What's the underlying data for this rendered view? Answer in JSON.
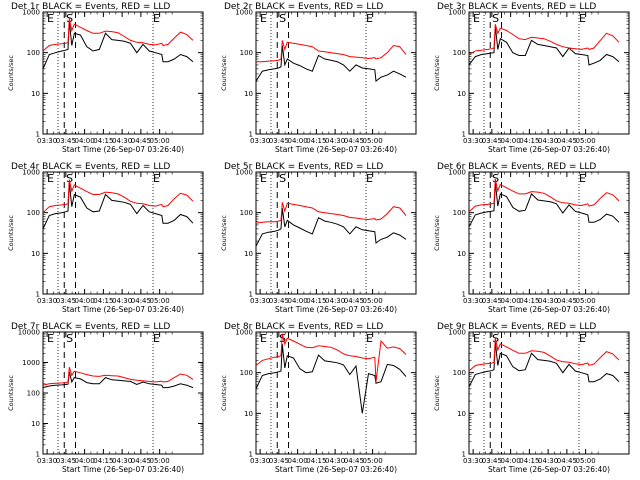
{
  "colors": {
    "events": "#000000",
    "lld": "#ff0000",
    "background": "#ffffff"
  },
  "chart_data": [
    {
      "type": "line",
      "title": "Det 1r BLACK = Events, RED = LLD",
      "xlabel": "Start Time (26-Sep-07 03:26:40)",
      "ylabel": "Counts/sec",
      "yscale": "log",
      "ylim": [
        1,
        1000
      ],
      "yticks": [
        "1",
        "10",
        "100",
        "1000"
      ],
      "xticks": [
        "03:30",
        "03:45",
        "04:00",
        "04:15",
        "04:30",
        "04:45",
        "05:00"
      ],
      "markers": [
        "E",
        "S",
        "E"
      ],
      "x_minutes": [
        0,
        5,
        10,
        15,
        18,
        20,
        21,
        23,
        25,
        30,
        35,
        40,
        45,
        50,
        55,
        60,
        65,
        70,
        75,
        80,
        85,
        90,
        95,
        96,
        100,
        105,
        110,
        115,
        120
      ],
      "series": [
        {
          "name": "Events",
          "values": [
            40,
            90,
            100,
            110,
            115,
            120,
            600,
            150,
            300,
            270,
            140,
            110,
            120,
            300,
            210,
            200,
            190,
            170,
            100,
            160,
            110,
            100,
            90,
            60,
            60,
            70,
            90,
            80,
            60
          ]
        },
        {
          "name": "LLD",
          "values": [
            110,
            150,
            160,
            165,
            170,
            175,
            700,
            350,
            500,
            420,
            350,
            300,
            300,
            340,
            330,
            310,
            250,
            200,
            180,
            175,
            160,
            155,
            170,
            150,
            160,
            230,
            320,
            280,
            200
          ]
        }
      ]
    },
    {
      "type": "line",
      "title": "Det 2r BLACK = Events, RED = LLD",
      "xlabel": "Start Time (26-Sep-07 03:26:40)",
      "ylabel": "Counts/sec",
      "yscale": "log",
      "ylim": [
        1,
        1000
      ],
      "yticks": [
        "1",
        "10",
        "100",
        "1000"
      ],
      "xticks": [
        "03:30",
        "03:45",
        "04:00",
        "04:15",
        "04:30",
        "04:45",
        "05:00"
      ],
      "markers": [
        "E",
        "S",
        "E"
      ],
      "x_minutes": [
        0,
        5,
        10,
        15,
        18,
        20,
        21,
        23,
        25,
        30,
        35,
        40,
        45,
        50,
        55,
        60,
        65,
        70,
        75,
        80,
        85,
        90,
        95,
        96,
        100,
        105,
        110,
        115,
        120
      ],
      "series": [
        {
          "name": "Events",
          "values": [
            20,
            35,
            38,
            40,
            42,
            45,
            150,
            50,
            70,
            55,
            48,
            40,
            35,
            85,
            70,
            65,
            60,
            50,
            35,
            50,
            42,
            40,
            38,
            20,
            25,
            28,
            35,
            30,
            25
          ]
        },
        {
          "name": "LLD",
          "values": [
            60,
            60,
            62,
            63,
            65,
            70,
            200,
            120,
            180,
            170,
            160,
            150,
            140,
            110,
            105,
            100,
            95,
            90,
            80,
            78,
            75,
            72,
            75,
            70,
            75,
            100,
            150,
            140,
            90
          ]
        }
      ]
    },
    {
      "type": "line",
      "title": "Det 3r BLACK = Events, RED = LLD",
      "xlabel": "Start Time (26-Sep-07 03:26:40)",
      "ylabel": "Counts/sec",
      "yscale": "log",
      "ylim": [
        1,
        1000
      ],
      "yticks": [
        "1",
        "10",
        "100",
        "1000"
      ],
      "xticks": [
        "03:30",
        "03:45",
        "04:00",
        "04:15",
        "04:30",
        "04:45",
        "05:00"
      ],
      "markers": [
        "E",
        "S",
        "E"
      ],
      "x_minutes": [
        0,
        5,
        10,
        15,
        18,
        20,
        21,
        23,
        25,
        30,
        35,
        40,
        45,
        50,
        55,
        60,
        65,
        70,
        75,
        80,
        85,
        90,
        95,
        96,
        100,
        105,
        110,
        115,
        120
      ],
      "series": [
        {
          "name": "Events",
          "values": [
            50,
            80,
            90,
            95,
            98,
            100,
            450,
            120,
            220,
            180,
            100,
            85,
            85,
            200,
            160,
            150,
            140,
            130,
            80,
            130,
            95,
            90,
            85,
            50,
            55,
            65,
            90,
            80,
            60
          ]
        },
        {
          "name": "LLD",
          "values": [
            90,
            110,
            115,
            120,
            125,
            130,
            500,
            300,
            400,
            350,
            280,
            220,
            210,
            240,
            230,
            220,
            190,
            160,
            140,
            130,
            125,
            120,
            130,
            120,
            130,
            200,
            300,
            260,
            180
          ]
        }
      ]
    },
    {
      "type": "line",
      "title": "Det 4r BLACK = Events, RED = LLD",
      "xlabel": "Start Time (26-Sep-07 03:26:40)",
      "ylabel": "Counts/sec",
      "yscale": "log",
      "ylim": [
        1,
        1000
      ],
      "yticks": [
        "1",
        "10",
        "100",
        "1000"
      ],
      "xticks": [
        "03:30",
        "03:45",
        "04:00",
        "04:15",
        "04:30",
        "04:45",
        "05:00"
      ],
      "markers": [
        "E",
        "S",
        "E"
      ],
      "x_minutes": [
        0,
        5,
        10,
        15,
        18,
        20,
        21,
        23,
        25,
        30,
        35,
        40,
        45,
        50,
        55,
        60,
        65,
        70,
        75,
        80,
        85,
        90,
        95,
        96,
        100,
        105,
        110,
        115,
        120
      ],
      "series": [
        {
          "name": "Events",
          "values": [
            40,
            85,
            95,
            100,
            105,
            110,
            550,
            140,
            280,
            240,
            130,
            105,
            110,
            280,
            200,
            190,
            180,
            160,
            95,
            150,
            105,
            95,
            85,
            55,
            55,
            65,
            90,
            80,
            55
          ]
        },
        {
          "name": "LLD",
          "values": [
            100,
            140,
            150,
            155,
            160,
            165,
            650,
            340,
            480,
            400,
            330,
            280,
            280,
            320,
            310,
            290,
            240,
            190,
            170,
            165,
            150,
            145,
            160,
            140,
            150,
            220,
            300,
            270,
            190
          ]
        }
      ]
    },
    {
      "type": "line",
      "title": "Det 5r BLACK = Events, RED = LLD",
      "xlabel": "Start Time (26-Sep-07 03:26:40)",
      "ylabel": "Counts/sec",
      "yscale": "log",
      "ylim": [
        1,
        1000
      ],
      "yticks": [
        "1",
        "10",
        "100",
        "1000"
      ],
      "xticks": [
        "03:30",
        "03:45",
        "04:00",
        "04:15",
        "04:30",
        "04:45",
        "05:00"
      ],
      "markers": [
        "E",
        "S",
        "E"
      ],
      "x_minutes": [
        0,
        5,
        10,
        15,
        18,
        20,
        21,
        23,
        25,
        30,
        35,
        40,
        45,
        50,
        55,
        60,
        65,
        70,
        75,
        80,
        85,
        90,
        95,
        96,
        100,
        105,
        110,
        115,
        120
      ],
      "series": [
        {
          "name": "Events",
          "values": [
            15,
            30,
            33,
            35,
            37,
            40,
            130,
            45,
            65,
            50,
            42,
            35,
            30,
            75,
            62,
            58,
            52,
            45,
            30,
            45,
            38,
            36,
            34,
            18,
            22,
            25,
            32,
            28,
            22
          ]
        },
        {
          "name": "LLD",
          "values": [
            55,
            58,
            60,
            60,
            62,
            65,
            180,
            110,
            170,
            160,
            150,
            140,
            130,
            105,
            100,
            95,
            90,
            85,
            76,
            74,
            70,
            68,
            72,
            66,
            70,
            95,
            140,
            130,
            85
          ]
        }
      ]
    },
    {
      "type": "line",
      "title": "Det 6r BLACK = Events, RED = LLD",
      "xlabel": "Start Time (26-Sep-07 03:26:40)",
      "ylabel": "Counts/sec",
      "yscale": "log",
      "ylim": [
        1,
        1000
      ],
      "yticks": [
        "1",
        "10",
        "100",
        "1000"
      ],
      "xticks": [
        "03:30",
        "03:45",
        "04:00",
        "04:15",
        "04:30",
        "04:45",
        "05:00"
      ],
      "markers": [
        "E",
        "S",
        "E"
      ],
      "x_minutes": [
        0,
        5,
        10,
        15,
        18,
        20,
        21,
        23,
        25,
        30,
        35,
        40,
        45,
        50,
        55,
        60,
        65,
        70,
        75,
        80,
        85,
        90,
        95,
        96,
        100,
        105,
        110,
        115,
        120
      ],
      "series": [
        {
          "name": "Events",
          "values": [
            45,
            88,
            98,
            105,
            108,
            112,
            560,
            145,
            290,
            250,
            135,
            108,
            115,
            290,
            205,
            195,
            185,
            165,
            98,
            155,
            108,
            98,
            88,
            58,
            58,
            68,
            92,
            82,
            58
          ]
        },
        {
          "name": "LLD",
          "values": [
            105,
            145,
            155,
            160,
            165,
            170,
            680,
            345,
            490,
            410,
            340,
            290,
            290,
            330,
            320,
            300,
            245,
            195,
            175,
            170,
            155,
            150,
            165,
            145,
            155,
            225,
            310,
            275,
            195
          ]
        }
      ]
    },
    {
      "type": "line",
      "title": "Det 7r BLACK = Events, RED = LLD",
      "xlabel": "Start Time (26-Sep-07 03:26:40)",
      "ylabel": "Counts/sec",
      "yscale": "log",
      "ylim": [
        1,
        10000
      ],
      "yticks": [
        "1",
        "10",
        "100",
        "1000",
        "10000"
      ],
      "xticks": [
        "03:30",
        "03:45",
        "04:00",
        "04:15",
        "04:30",
        "04:45",
        "05:00"
      ],
      "markers": [
        "E",
        "S",
        "E"
      ],
      "x_minutes": [
        0,
        5,
        10,
        15,
        18,
        20,
        21,
        23,
        25,
        30,
        35,
        40,
        45,
        50,
        55,
        60,
        65,
        70,
        75,
        80,
        85,
        90,
        95,
        96,
        100,
        105,
        110,
        115,
        120
      ],
      "series": [
        {
          "name": "Events",
          "values": [
            150,
            170,
            180,
            185,
            190,
            195,
            500,
            230,
            320,
            290,
            220,
            200,
            200,
            320,
            270,
            260,
            250,
            240,
            190,
            230,
            200,
            190,
            180,
            150,
            150,
            170,
            200,
            180,
            150
          ]
        },
        {
          "name": "LLD",
          "values": [
            180,
            200,
            210,
            215,
            220,
            230,
            700,
            380,
            520,
            460,
            400,
            360,
            350,
            380,
            370,
            360,
            320,
            280,
            260,
            250,
            240,
            230,
            245,
            230,
            240,
            320,
            420,
            380,
            280
          ]
        }
      ]
    },
    {
      "type": "line",
      "title": "Det 8r BLACK = Events, RED = LLD",
      "xlabel": "Start Time (26-Sep-07 03:26:40)",
      "ylabel": "Counts/sec",
      "yscale": "log",
      "ylim": [
        1,
        1000
      ],
      "yticks": [
        "1",
        "10",
        "100",
        "1000"
      ],
      "xticks": [
        "03:30",
        "03:45",
        "04:00",
        "04:15",
        "04:30",
        "04:45",
        "05:00"
      ],
      "markers": [
        "E",
        "S",
        "E"
      ],
      "x_minutes": [
        0,
        5,
        10,
        15,
        18,
        20,
        21,
        23,
        25,
        30,
        35,
        40,
        45,
        50,
        55,
        60,
        65,
        70,
        75,
        80,
        85,
        90,
        95,
        96,
        100,
        105,
        110,
        115,
        120
      ],
      "series": [
        {
          "name": "Events",
          "values": [
            40,
            85,
            95,
            100,
            105,
            110,
            500,
            130,
            260,
            230,
            125,
            100,
            105,
            270,
            195,
            185,
            175,
            155,
            90,
            145,
            10,
            95,
            85,
            55,
            60,
            160,
            150,
            120,
            80
          ]
        },
        {
          "name": "LLD",
          "values": [
            150,
            200,
            220,
            240,
            250,
            260,
            900,
            500,
            700,
            600,
            500,
            420,
            410,
            460,
            440,
            420,
            360,
            290,
            260,
            250,
            230,
            220,
            240,
            60,
            600,
            400,
            430,
            390,
            280
          ]
        }
      ]
    },
    {
      "type": "line",
      "title": "Det 9r BLACK = Events, RED = LLD",
      "xlabel": "Start Time (26-Sep-07 03:26:40)",
      "ylabel": "Counts/sec",
      "yscale": "log",
      "ylim": [
        1,
        1000
      ],
      "yticks": [
        "1",
        "10",
        "100",
        "1000"
      ],
      "xticks": [
        "03:30",
        "03:45",
        "04:00",
        "04:15",
        "04:30",
        "04:45",
        "05:00"
      ],
      "markers": [
        "E",
        "S",
        "E"
      ],
      "x_minutes": [
        0,
        5,
        10,
        15,
        18,
        20,
        21,
        23,
        25,
        30,
        35,
        40,
        45,
        50,
        55,
        60,
        65,
        70,
        75,
        80,
        85,
        90,
        95,
        96,
        100,
        105,
        110,
        115,
        120
      ],
      "series": [
        {
          "name": "Events",
          "values": [
            45,
            90,
            100,
            108,
            112,
            118,
            580,
            150,
            300,
            260,
            140,
            112,
            118,
            300,
            210,
            200,
            190,
            170,
            100,
            160,
            110,
            100,
            90,
            60,
            60,
            70,
            95,
            85,
            60
          ]
        },
        {
          "name": "LLD",
          "values": [
            110,
            150,
            160,
            168,
            172,
            178,
            720,
            360,
            510,
            430,
            355,
            300,
            300,
            345,
            335,
            315,
            255,
            205,
            185,
            180,
            165,
            158,
            172,
            152,
            162,
            235,
            330,
            290,
            205
          ]
        }
      ]
    }
  ]
}
